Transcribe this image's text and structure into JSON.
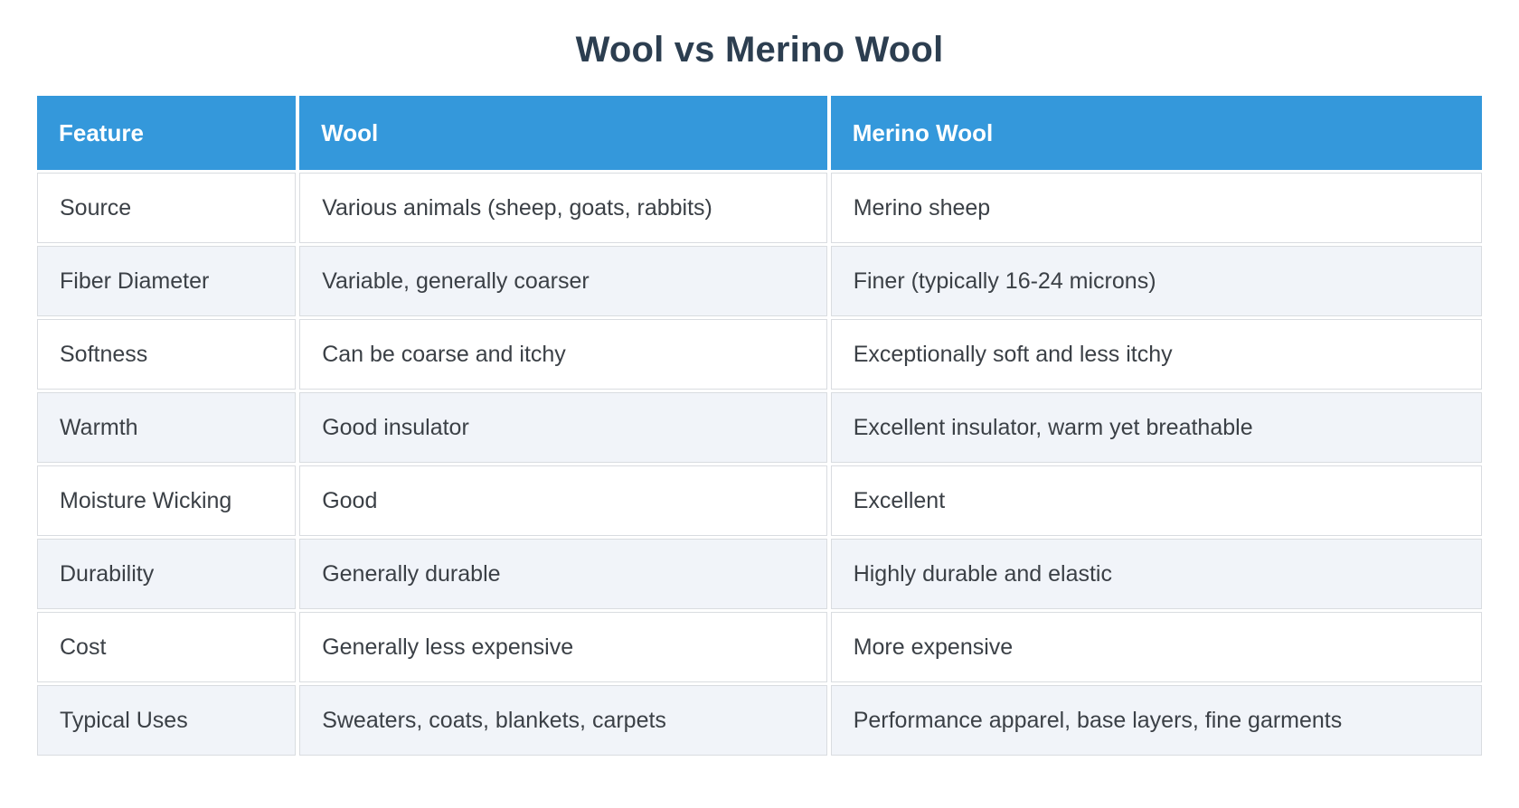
{
  "page": {
    "title": "Wool vs Merino Wool"
  },
  "colors": {
    "header_bg": "#3498db",
    "header_text": "#ffffff",
    "title_text": "#2c3e50",
    "row_bg": "#ffffff",
    "row_alt_bg": "#f1f4f9",
    "body_text": "#3b4046",
    "border": "#d9dce0",
    "page_bg": "#ffffff"
  },
  "table": {
    "columns": [
      "Feature",
      "Wool",
      "Merino Wool"
    ],
    "column_keys": [
      "feature",
      "wool",
      "merino"
    ],
    "rows": [
      {
        "feature": "Source",
        "wool": "Various animals (sheep, goats, rabbits)",
        "merino": "Merino sheep"
      },
      {
        "feature": "Fiber Diameter",
        "wool": "Variable, generally coarser",
        "merino": "Finer (typically 16-24 microns)"
      },
      {
        "feature": "Softness",
        "wool": "Can be coarse and itchy",
        "merino": "Exceptionally soft and less itchy"
      },
      {
        "feature": "Warmth",
        "wool": "Good insulator",
        "merino": "Excellent insulator, warm yet breathable"
      },
      {
        "feature": "Moisture Wicking",
        "wool": "Good",
        "merino": "Excellent"
      },
      {
        "feature": "Durability",
        "wool": "Generally durable",
        "merino": "Highly durable and elastic"
      },
      {
        "feature": "Cost",
        "wool": "Generally less expensive",
        "merino": "More expensive"
      },
      {
        "feature": "Typical Uses",
        "wool": "Sweaters, coats, blankets, carpets",
        "merino": "Performance apparel, base layers, fine garments"
      }
    ]
  }
}
